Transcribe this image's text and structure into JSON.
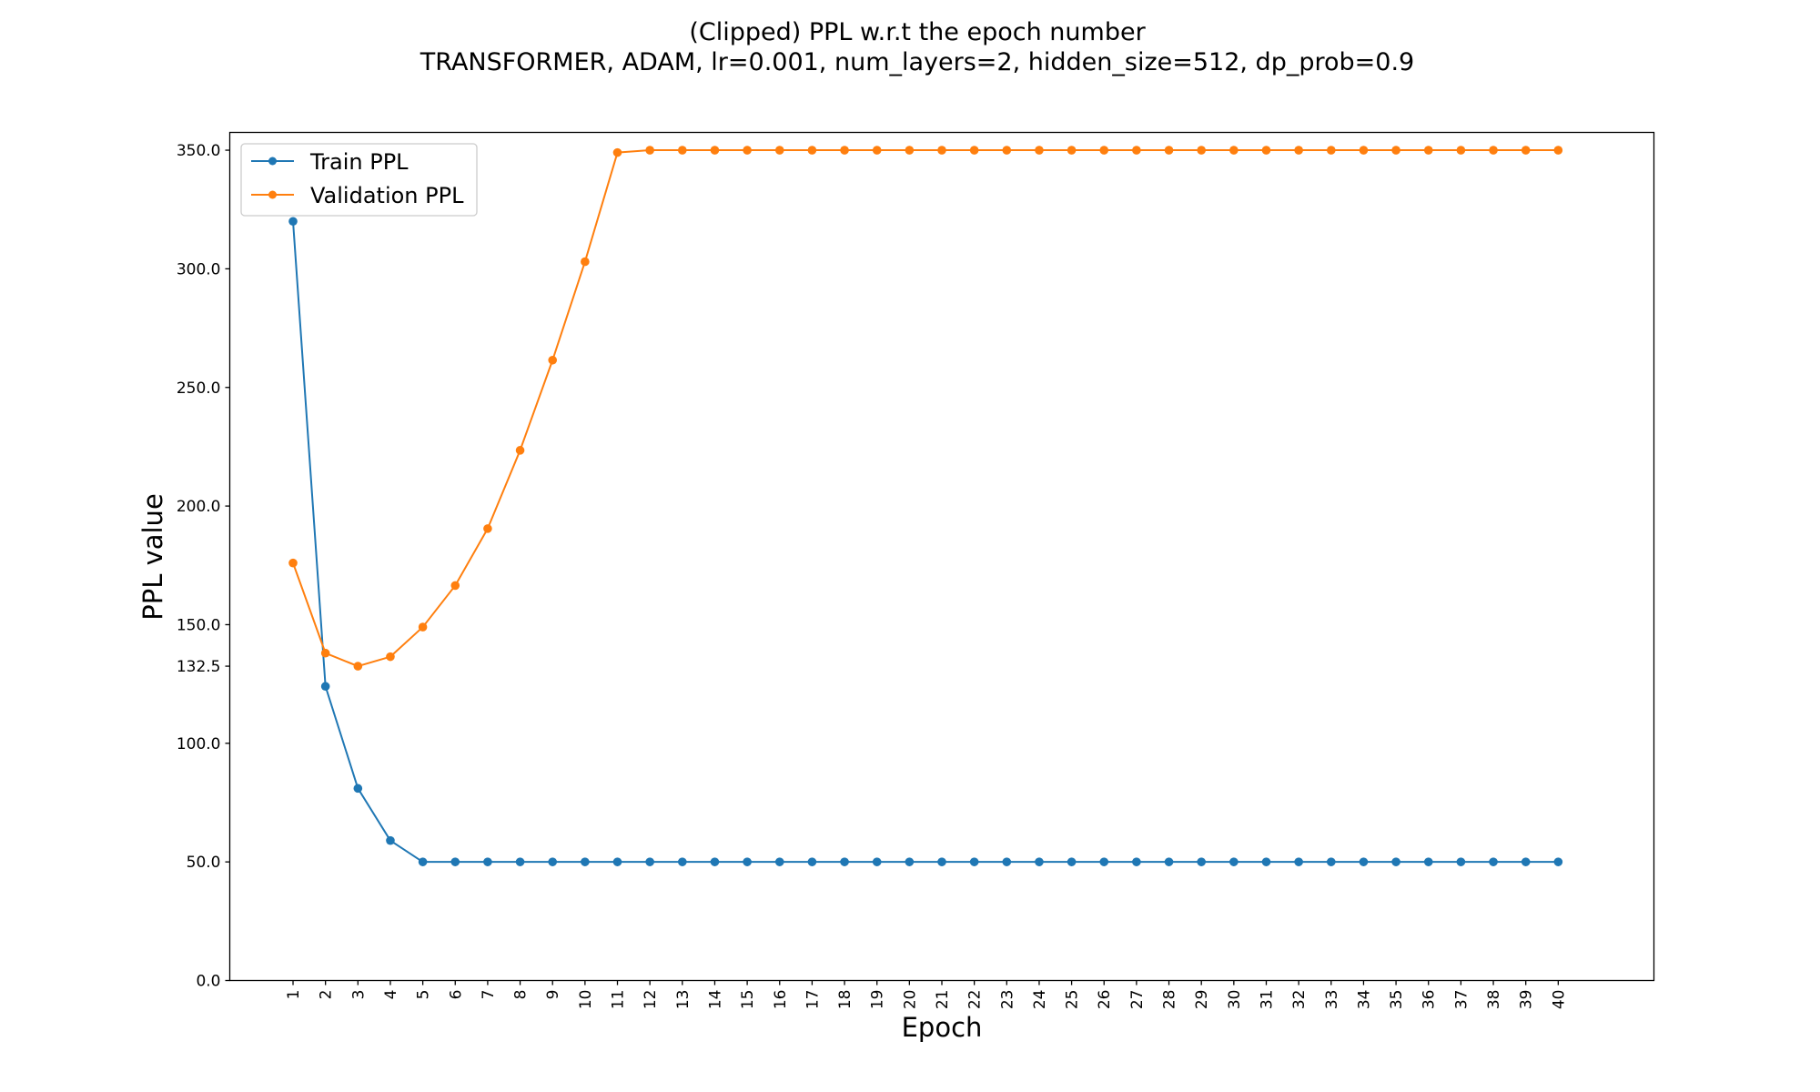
{
  "chart_data": {
    "type": "line",
    "title": "(Clipped) PPL w.r.t the epoch number",
    "subtitle": "TRANSFORMER, ADAM, lr=0.001,  num_layers=2,  hidden_size=512,  dp_prob=0.9",
    "xlabel": "Epoch",
    "ylabel": "PPL value",
    "x": [
      1,
      2,
      3,
      4,
      5,
      6,
      7,
      8,
      9,
      10,
      11,
      12,
      13,
      14,
      15,
      16,
      17,
      18,
      19,
      20,
      21,
      22,
      23,
      24,
      25,
      26,
      27,
      28,
      29,
      30,
      31,
      32,
      33,
      34,
      35,
      36,
      37,
      38,
      39,
      40
    ],
    "x_tick_labels": [
      "1",
      "2",
      "3",
      "4",
      "5",
      "6",
      "7",
      "8",
      "9",
      "10",
      "11",
      "12",
      "13",
      "14",
      "15",
      "16",
      "17",
      "18",
      "19",
      "20",
      "21",
      "22",
      "23",
      "24",
      "25",
      "26",
      "27",
      "28",
      "29",
      "30",
      "31",
      "32",
      "33",
      "34",
      "35",
      "36",
      "37",
      "38",
      "39",
      "40"
    ],
    "xlim": [
      -0.95,
      42.95
    ],
    "ylim": [
      0,
      357.5
    ],
    "y_ticks": [
      0,
      50,
      100,
      132.5,
      150,
      200,
      250,
      300,
      350
    ],
    "y_tick_labels": [
      "0.0",
      "50.0",
      "100.0",
      "132.5",
      "150.0",
      "200.0",
      "250.0",
      "300.0",
      "350.0"
    ],
    "grid": false,
    "legend_position": "upper-left",
    "series": [
      {
        "name": "Train PPL",
        "color": "#1f77b4",
        "values": [
          320,
          124,
          81,
          59,
          50,
          50,
          50,
          50,
          50,
          50,
          50,
          50,
          50,
          50,
          50,
          50,
          50,
          50,
          50,
          50,
          50,
          50,
          50,
          50,
          50,
          50,
          50,
          50,
          50,
          50,
          50,
          50,
          50,
          50,
          50,
          50,
          50,
          50,
          50,
          50
        ]
      },
      {
        "name": "Validation PPL",
        "color": "#ff7f0e",
        "values": [
          176,
          138,
          132.5,
          136.5,
          149,
          166.5,
          190.5,
          223.5,
          261.5,
          303,
          349,
          350,
          350,
          350,
          350,
          350,
          350,
          350,
          350,
          350,
          350,
          350,
          350,
          350,
          350,
          350,
          350,
          350,
          350,
          350,
          350,
          350,
          350,
          350,
          350,
          350,
          350,
          350,
          350,
          350
        ]
      }
    ]
  }
}
